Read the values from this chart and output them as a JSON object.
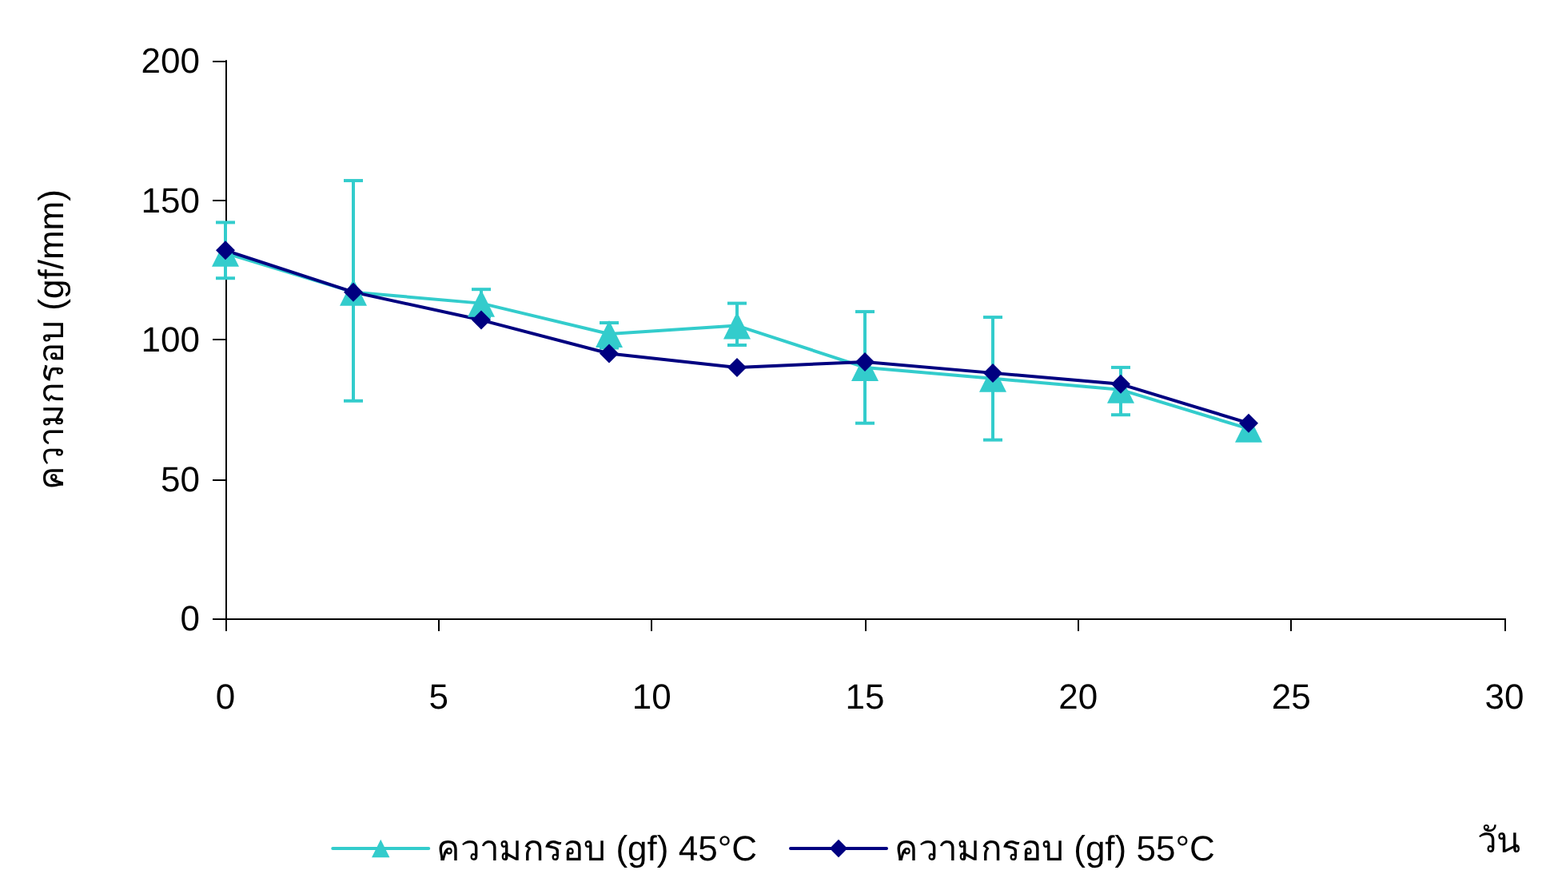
{
  "chart_data": {
    "type": "line",
    "xlabel": "วัน",
    "ylabel": "ความกรอบ (gf/mm)",
    "x": [
      0,
      3,
      6,
      9,
      12,
      15,
      18,
      21,
      24
    ],
    "xlim": [
      0,
      30
    ],
    "xticks": [
      0,
      5,
      10,
      15,
      20,
      25,
      30
    ],
    "ylim": [
      0,
      200
    ],
    "yticks": [
      0,
      50,
      100,
      150,
      200
    ],
    "grid": false,
    "legend": "bottom",
    "series": [
      {
        "name": "ความกรอบ (gf) 45°C",
        "color": "#33cccc",
        "marker": "triangle",
        "values": [
          131,
          117,
          113,
          102,
          105,
          90,
          86,
          82,
          68
        ],
        "errors": [
          [
            122,
            142
          ],
          [
            78,
            157
          ],
          [
            108,
            118
          ],
          [
            97,
            106
          ],
          [
            98,
            113
          ],
          [
            70,
            110
          ],
          [
            64,
            108
          ],
          [
            73,
            90
          ],
          null
        ]
      },
      {
        "name": "ความกรอบ (gf) 55°C",
        "color": "#000080",
        "marker": "diamond",
        "values": [
          132,
          117,
          107,
          95,
          90,
          92,
          88,
          84,
          70
        ]
      }
    ]
  }
}
